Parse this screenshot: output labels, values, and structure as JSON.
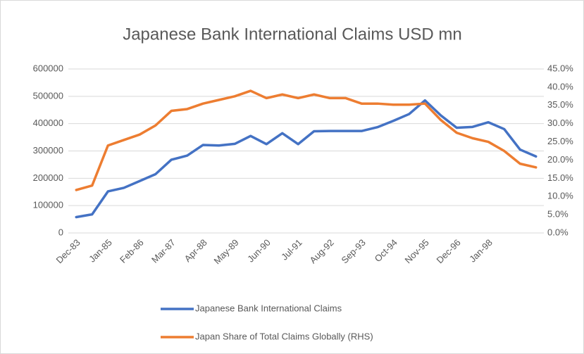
{
  "chart_data": {
    "type": "line",
    "title": "Japanese Bank International Claims USD mn",
    "categories": [
      "Dec-83",
      null,
      "Jan-85",
      null,
      "Feb-86",
      null,
      "Mar-87",
      null,
      "Apr-88",
      null,
      "May-89",
      null,
      "Jun-90",
      null,
      "Jul-91",
      null,
      "Aug-92",
      null,
      "Sep-93",
      null,
      "Oct-94",
      null,
      "Nov-95",
      null,
      "Dec-96",
      null,
      "Jan-98",
      null,
      null,
      null
    ],
    "series": [
      {
        "name": "Japanese Bank International Claims",
        "color": "#4472c4",
        "axis": "y",
        "values": [
          58000,
          68000,
          152000,
          165000,
          190000,
          215000,
          268000,
          283000,
          322000,
          320000,
          326000,
          355000,
          325000,
          365000,
          325000,
          372000,
          373000,
          373000,
          373000,
          387000,
          410000,
          435000,
          485000,
          430000,
          385000,
          388000,
          405000,
          380000,
          305000,
          280000
        ]
      },
      {
        "name": "Japan Share of Total Claims Globally (RHS)",
        "color": "#ed7d31",
        "axis": "y2",
        "values": [
          11.8,
          13,
          24,
          25.5,
          27,
          29.5,
          33.5,
          34,
          35.5,
          36.5,
          37.5,
          39,
          37,
          38,
          37,
          38,
          37,
          37,
          35.5,
          35.5,
          35.2,
          35.2,
          35.5,
          31,
          27.5,
          26,
          25,
          22.5,
          19,
          18
        ]
      }
    ],
    "ylim": [
      0,
      600000
    ],
    "yticks": [
      0,
      100000,
      200000,
      300000,
      400000,
      500000,
      600000
    ],
    "y2lim": [
      0,
      45
    ],
    "y2ticks": [
      {
        "value": 0,
        "label": "0.0%"
      },
      {
        "value": 5,
        "label": "5.0%"
      },
      {
        "value": 10,
        "label": "10.0%"
      },
      {
        "value": 15,
        "label": "15.0%"
      },
      {
        "value": 20,
        "label": "20.0%"
      },
      {
        "value": 25,
        "label": "25.0%"
      },
      {
        "value": 30,
        "label": "30.0%"
      },
      {
        "value": 35,
        "label": "35.0%"
      },
      {
        "value": 40,
        "label": "40.0%"
      },
      {
        "value": 45,
        "label": "45.0%"
      }
    ],
    "grid": true,
    "legend": "bottom"
  }
}
